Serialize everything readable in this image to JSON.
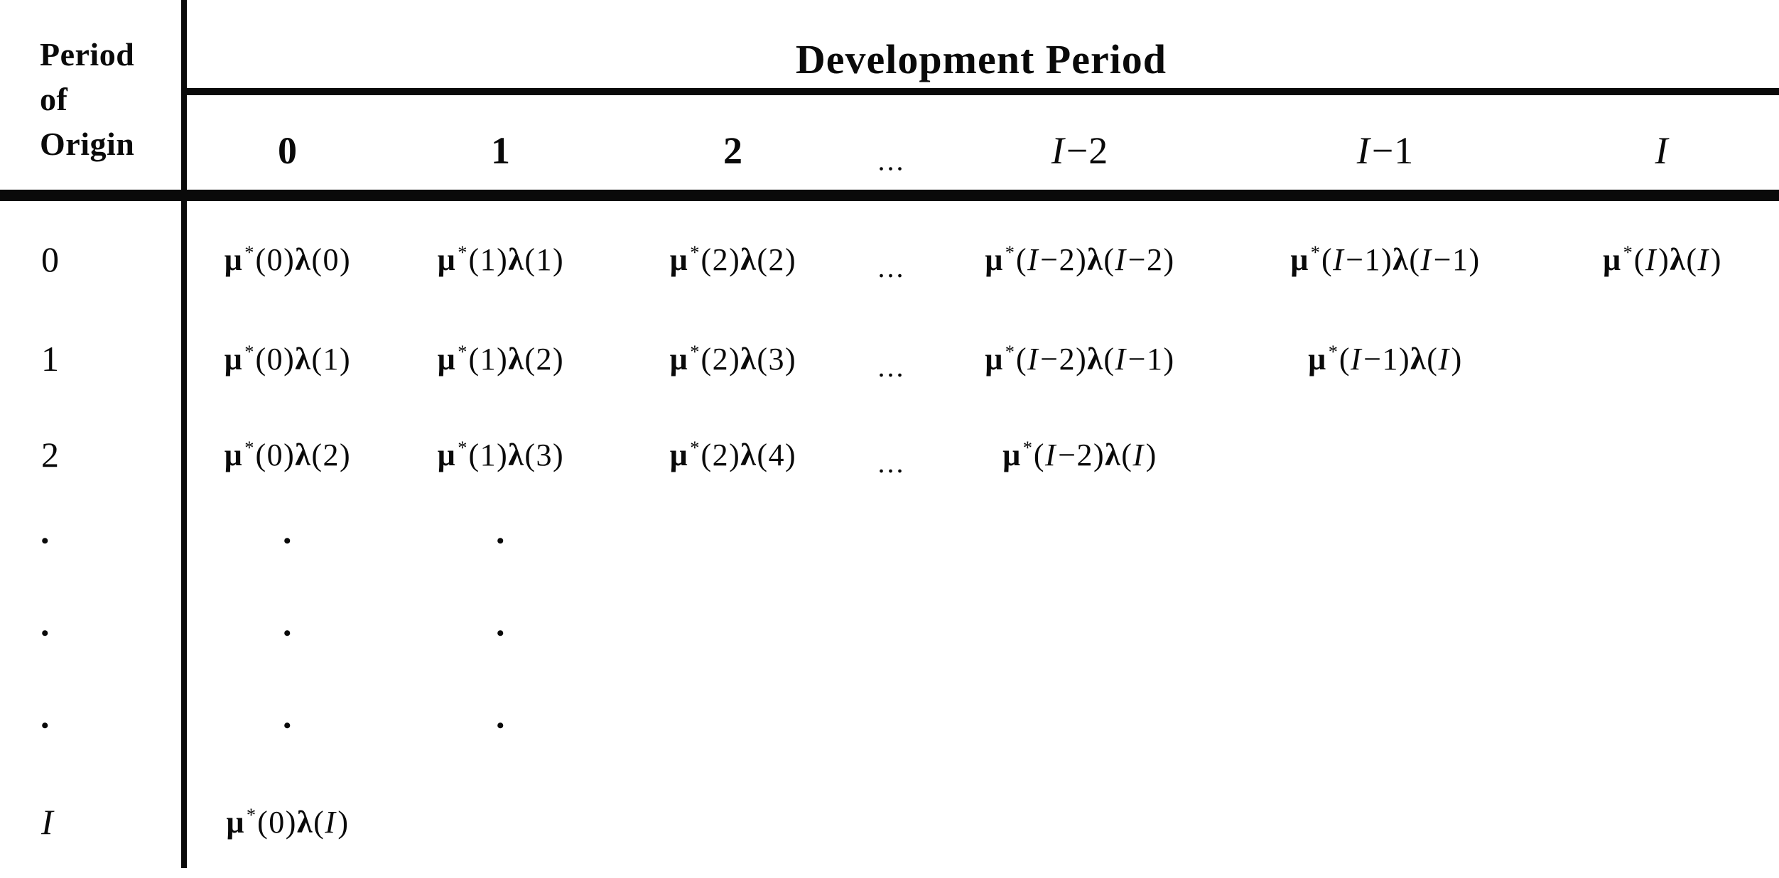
{
  "table": {
    "origin_header_lines": [
      "Period",
      "of",
      "Origin"
    ],
    "development_header": "Development Period",
    "col_headers": [
      "0",
      "1",
      "2",
      "...",
      "I−2",
      "I−1",
      "I"
    ],
    "rows": [
      {
        "label": "0",
        "cells": [
          "μ*(0)λ(0)",
          "μ*(1)λ(1)",
          "μ*(2)λ(2)",
          "...",
          "μ*(I−2)λ(I−2)",
          "μ*(I−1)λ(I−1)",
          "μ*(I)λ(I)"
        ]
      },
      {
        "label": "1",
        "cells": [
          "μ*(0)λ(1)",
          "μ*(1)λ(2)",
          "μ*(2)λ(3)",
          "...",
          "μ*(I−2)λ(I−1)",
          "μ*(I−1)λ(I)",
          ""
        ]
      },
      {
        "label": "2",
        "cells": [
          "μ*(0)λ(2)",
          "μ*(1)λ(3)",
          "μ*(2)λ(4)",
          "...",
          "μ*(I−2)λ(I)",
          "",
          ""
        ]
      },
      {
        "label": "•",
        "cells": [
          "•",
          "•",
          "",
          "",
          "",
          "",
          ""
        ]
      },
      {
        "label": "•",
        "cells": [
          "•",
          "•",
          "",
          "",
          "",
          "",
          ""
        ]
      },
      {
        "label": "•",
        "cells": [
          "•",
          "•",
          "",
          "",
          "",
          "",
          ""
        ]
      },
      {
        "label": "I",
        "cells": [
          "μ*(0)λ(I)",
          "",
          "",
          "",
          "",
          "",
          ""
        ]
      }
    ],
    "ink_color": "#0a0a0a",
    "background_color": "#ffffff"
  }
}
